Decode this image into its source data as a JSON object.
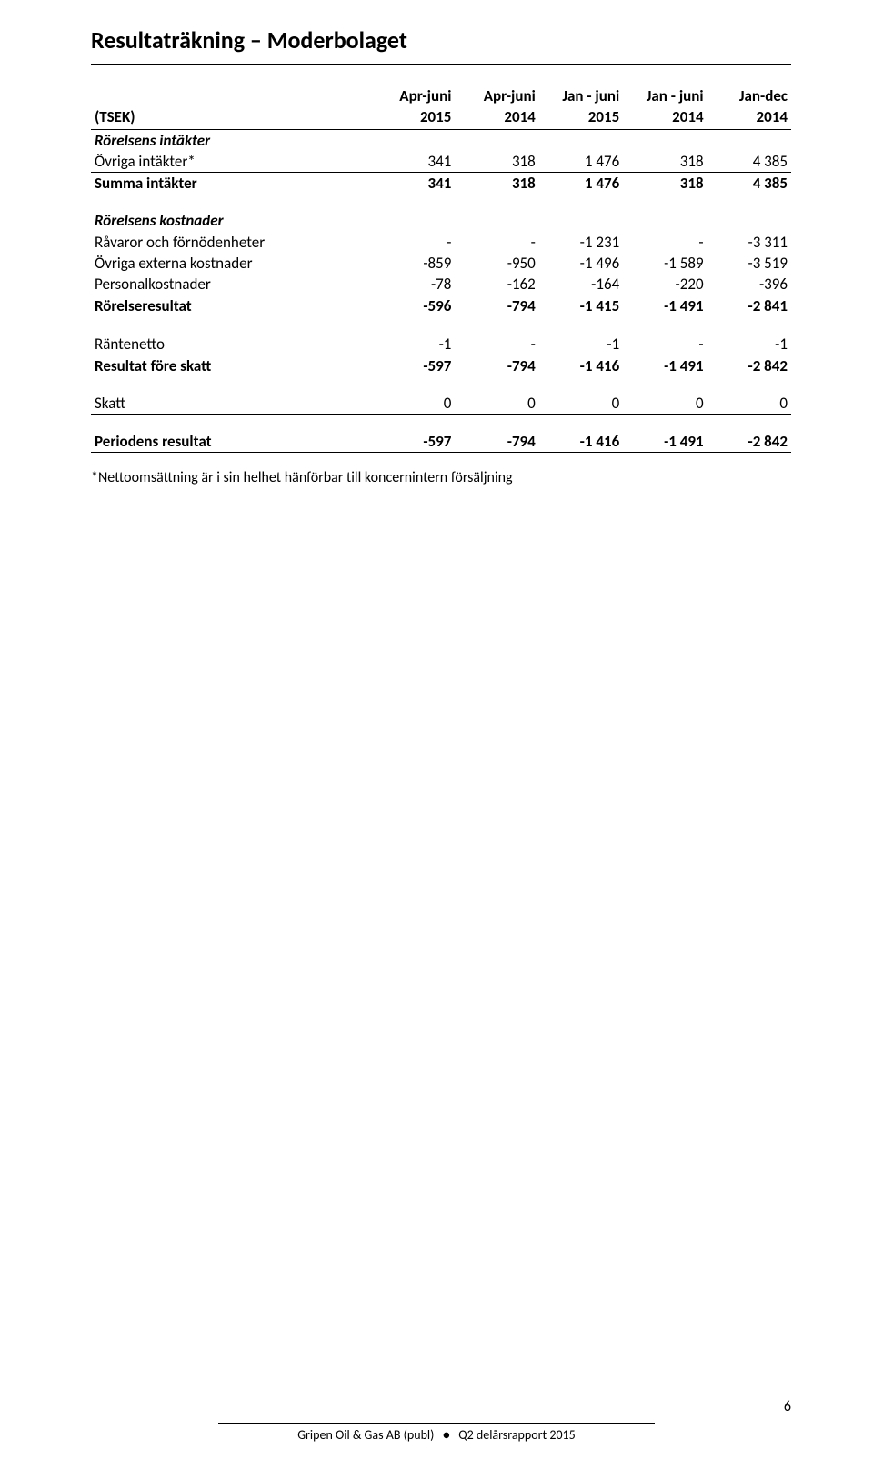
{
  "title": "Resultaträkning – Moderbolaget",
  "columns": {
    "c0": {
      "l1": "",
      "l2": "(TSEK)"
    },
    "c1": {
      "l1": "Apr-juni",
      "l2": "2015"
    },
    "c2": {
      "l1": "Apr-juni",
      "l2": "2014"
    },
    "c3": {
      "l1": "Jan - juni",
      "l2": "2015"
    },
    "c4": {
      "l1": "Jan - juni",
      "l2": "2014"
    },
    "c5": {
      "l1": "Jan-dec",
      "l2": "2014"
    }
  },
  "sections": {
    "rev_hdr": "Rörelsens intäkter",
    "ovriga_intakter": {
      "label": "Övriga intäkter*",
      "v": [
        "341",
        "318",
        "1 476",
        "318",
        "4 385"
      ]
    },
    "summa_intakter": {
      "label": "Summa intäkter",
      "v": [
        "341",
        "318",
        "1 476",
        "318",
        "4 385"
      ]
    },
    "cost_hdr": "Rörelsens kostnader",
    "ravaror": {
      "label": "Råvaror och förnödenheter",
      "v": [
        "-",
        "-",
        "-1 231",
        "-",
        "-3 311"
      ]
    },
    "externa": {
      "label": "Övriga externa kostnader",
      "v": [
        "-859",
        "-950",
        "-1 496",
        "-1 589",
        "-3 519"
      ]
    },
    "personal": {
      "label": "Personalkostnader",
      "v": [
        "-78",
        "-162",
        "-164",
        "-220",
        "-396"
      ]
    },
    "rorelseresultat": {
      "label": "Rörelseresultat",
      "v": [
        "-596",
        "-794",
        "-1 415",
        "-1 491",
        "-2 841"
      ]
    },
    "rantenetto": {
      "label": "Räntenetto",
      "v": [
        "-1",
        "-",
        "-1",
        "-",
        "-1"
      ]
    },
    "resultat_fore": {
      "label": "Resultat före skatt",
      "v": [
        "-597",
        "-794",
        "-1 416",
        "-1 491",
        "-2 842"
      ]
    },
    "skatt": {
      "label": "Skatt",
      "v": [
        "0",
        "0",
        "0",
        "0",
        "0"
      ]
    },
    "periodens": {
      "label": "Periodens resultat",
      "v": [
        "-597",
        "-794",
        "-1 416",
        "-1 491",
        "-2 842"
      ]
    }
  },
  "footnote": "*Nettoomsättning är i sin helhet hänförbar till koncernintern försäljning",
  "footer": {
    "left": "Gripen Oil & Gas AB (publ)",
    "right": "Q2 delårsrapport 2015"
  },
  "page_number": "6"
}
